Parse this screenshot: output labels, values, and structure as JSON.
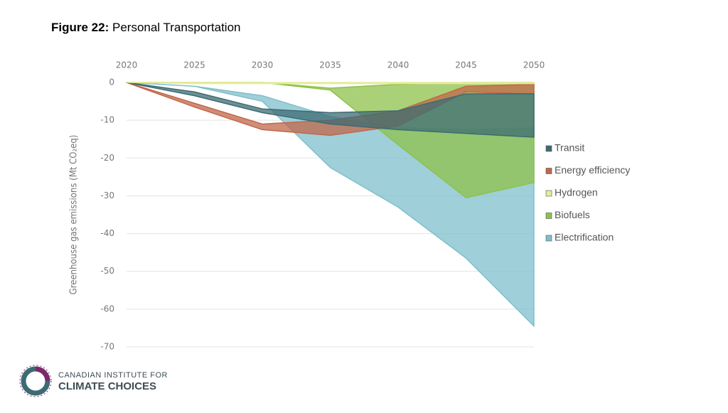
{
  "figure_label": "Figure 22:",
  "logo": {
    "line1": "CANADIAN INSTITUTE FOR",
    "line2": "CLIMATE CHOICES"
  },
  "chart_data": {
    "type": "range_area",
    "title": "Personal Transportation",
    "y_label": "Greenhouse gas emissions (Mt CO₂eq)",
    "x": [
      2020,
      2025,
      2030,
      2035,
      2040,
      2045,
      2050
    ],
    "xlim": [
      2020,
      2050
    ],
    "xticks": [
      2020,
      2025,
      2030,
      2035,
      2040,
      2045,
      2050
    ],
    "ylim": [
      -70,
      0
    ],
    "yticks": [
      0,
      -10,
      -20,
      -30,
      -40,
      -50,
      -60,
      -70
    ],
    "grid": true,
    "legend": "right",
    "series": [
      {
        "name": "Transit",
        "color": "#3d6b73",
        "high": [
          0,
          -2.5,
          -7,
          -8,
          -7.5,
          -3,
          -3
        ],
        "low": [
          0,
          -3.5,
          -8,
          -11,
          -12.5,
          -13.5,
          -14.5
        ]
      },
      {
        "name": "Energy efficiency",
        "color": "#c0674a",
        "high": [
          0,
          -5.5,
          -11,
          -10,
          -7.5,
          -1,
          -0.5
        ],
        "low": [
          0,
          -6.5,
          -12.5,
          -14,
          -11.5,
          -2.5,
          -3
        ]
      },
      {
        "name": "Hydrogen",
        "color": "#e6ec9a",
        "high": [
          0,
          0,
          0,
          0,
          0,
          0,
          0
        ],
        "low": [
          0,
          -0.3,
          -0.3,
          -0.3,
          -0.3,
          -0.3,
          -0.3
        ]
      },
      {
        "name": "Biofuels",
        "color": "#8dc24a",
        "high": [
          0,
          0,
          0,
          -1.5,
          -0.5,
          0,
          0
        ],
        "low": [
          0,
          0,
          0,
          -2,
          -16.5,
          -30.5,
          -26.5
        ]
      },
      {
        "name": "Electrification",
        "color": "#7fbfcc",
        "high": [
          0,
          -1,
          -3.5,
          -9,
          -12,
          -12.5,
          -12
        ],
        "low": [
          0,
          -1,
          -5,
          -22.5,
          -33,
          -46.5,
          -64.5
        ]
      }
    ]
  }
}
